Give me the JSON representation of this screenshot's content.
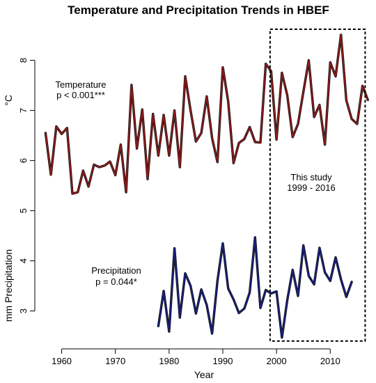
{
  "chart_data": {
    "type": "line",
    "title": "Temperature and Precipitation Trends in HBEF",
    "xlabel": "Year",
    "ylabel_left": "°C",
    "ylabel_left_lower": "mm Precipitation",
    "xlim": [
      1955,
      2018
    ],
    "ylim": [
      2.3,
      8.8
    ],
    "x_ticks": [
      1960,
      1970,
      1980,
      1990,
      2000,
      2010
    ],
    "x_tick_labels": [
      "1960",
      "1970",
      "1980",
      "1990",
      "2000",
      "2010"
    ],
    "y_ticks": [
      3,
      4,
      5,
      6,
      7,
      8
    ],
    "y_tick_labels": [
      "3",
      "4",
      "5",
      "6",
      "7",
      "8"
    ],
    "grid": false,
    "series": [
      {
        "color": "#8b1a1a",
        "x": [
          1957,
          1958,
          1959,
          1960,
          1961,
          1962,
          1963,
          1964,
          1965,
          1966,
          1967,
          1968,
          1969,
          1970,
          1971,
          1972,
          1973,
          1974,
          1975,
          1976,
          1977,
          1978,
          1979,
          1980,
          1981,
          1982,
          1983,
          1984,
          1985,
          1986,
          1987,
          1988,
          1989,
          1990,
          1991,
          1992,
          1993,
          1994,
          1995,
          1996,
          1997,
          1998,
          1999,
          2000,
          2001,
          2002,
          2003,
          2004,
          2005,
          2006,
          2007,
          2008,
          2009,
          2010,
          2011,
          2012,
          2013,
          2014,
          2015,
          2016,
          2017
        ],
        "y": [
          6.55,
          5.72,
          6.68,
          6.53,
          6.65,
          5.34,
          5.37,
          5.8,
          5.48,
          5.92,
          5.87,
          5.9,
          5.98,
          5.71,
          6.32,
          5.37,
          7.51,
          6.24,
          7.02,
          5.63,
          6.93,
          6.1,
          6.91,
          6.1,
          7.0,
          5.87,
          7.68,
          7.0,
          6.38,
          6.55,
          7.28,
          6.45,
          5.97,
          7.86,
          7.18,
          5.95,
          6.35,
          6.43,
          6.67,
          6.37,
          6.36,
          7.93,
          7.78,
          6.42,
          7.75,
          7.3,
          6.47,
          6.73,
          7.37,
          8.0,
          6.87,
          7.11,
          6.32,
          7.96,
          7.68,
          8.51,
          7.2,
          6.83,
          6.73,
          7.49,
          7.21
        ]
      },
      {
        "color": "#1a1f7a",
        "x": [
          1978,
          1979,
          1980,
          1981,
          1982,
          1983,
          1984,
          1985,
          1986,
          1987,
          1988,
          1989,
          1990,
          1991,
          1992,
          1993,
          1994,
          1995,
          1996,
          1997,
          1998,
          1999,
          2000,
          2001,
          2002,
          2003,
          2004,
          2005,
          2006,
          2007,
          2008,
          2009,
          2010,
          2011,
          2012,
          2013,
          2014
        ],
        "y": [
          2.7,
          3.4,
          2.59,
          4.25,
          2.87,
          3.75,
          3.5,
          2.95,
          3.43,
          3.12,
          2.55,
          3.6,
          4.35,
          3.45,
          3.23,
          2.96,
          3.05,
          3.37,
          4.47,
          3.06,
          3.42,
          3.35,
          3.39,
          2.47,
          3.22,
          3.82,
          3.3,
          4.31,
          3.7,
          3.53,
          4.26,
          3.77,
          3.6,
          4.07,
          3.63,
          3.28,
          3.58
        ]
      }
    ],
    "annotations": {
      "temperature_label": "Temperature",
      "temperature_p": "p < 0.001***",
      "precipitation_label": "Precipitation",
      "precipitation_p": "p = 0.044*",
      "study_label": "This study",
      "study_range": "1999 - 2016"
    },
    "highlight_box": {
      "x": [
        1998.8,
        2016.5
      ],
      "y": [
        2.4,
        8.62
      ],
      "style": "dotted"
    }
  }
}
